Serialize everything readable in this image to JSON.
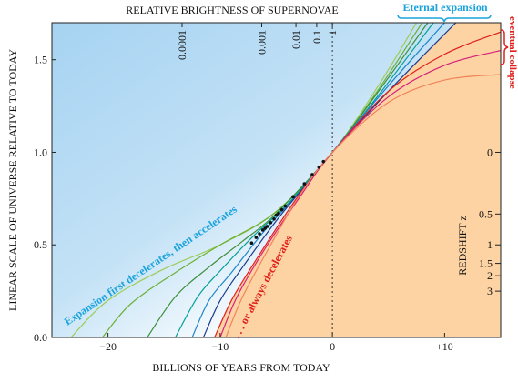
{
  "chart_data": {
    "type": "line",
    "x2label": "RELATIVE BRIGHTNESS OF SUPERNOVAE",
    "xlabel": "BILLIONS OF YEARS FROM TODAY",
    "ylabel": "LINEAR SCALE OF UNIVERSE RELATIVE TO TODAY",
    "y2label": "REDSHIFT z",
    "xlim": [
      -25,
      15
    ],
    "ylim": [
      0,
      1.7
    ],
    "xticks": [
      {
        "value": -20,
        "label": "−20"
      },
      {
        "value": -10,
        "label": "−10"
      },
      0,
      {
        "value": 10,
        "label": "+10"
      }
    ],
    "yticks": [
      {
        "value": 0,
        "label": "0.0"
      },
      0.5,
      {
        "value": 1,
        "label": "1.0"
      },
      1.5
    ],
    "x2ticks": [
      {
        "value": 0.0001,
        "x": -13.4
      },
      {
        "value": 0.001,
        "x": -6.3
      },
      {
        "value": 0.01,
        "x": -3.25
      },
      {
        "value": 0.1,
        "x": -1.4
      },
      {
        "value": 1,
        "x": 0
      }
    ],
    "y2ticks": [
      0,
      0.5,
      1,
      1.5,
      2,
      3
    ],
    "grid": false,
    "series": [
      {
        "color": "#9ccc55",
        "x": [
          -23.3,
          -20,
          -15,
          -10,
          -5,
          0,
          4,
          7.5
        ],
        "values": [
          0,
          0.2,
          0.37,
          0.5,
          0.68,
          1,
          1.35,
          1.7
        ]
      },
      {
        "color": "#6cb033",
        "x": [
          -20.5,
          -18,
          -14,
          -10,
          -5,
          0,
          4,
          8
        ],
        "values": [
          0,
          0.18,
          0.35,
          0.5,
          0.68,
          1,
          1.33,
          1.7
        ]
      },
      {
        "color": "#3a8f3a",
        "x": [
          -16.5,
          -14,
          -11,
          -8,
          -5,
          0,
          4,
          8.5
        ],
        "values": [
          0,
          0.22,
          0.38,
          0.52,
          0.67,
          1,
          1.32,
          1.7
        ]
      },
      {
        "color": "#00a09a",
        "x": [
          -14,
          -12,
          -10,
          -7,
          -4,
          0,
          4,
          9
        ],
        "values": [
          0,
          0.22,
          0.36,
          0.55,
          0.72,
          1,
          1.3,
          1.7
        ]
      },
      {
        "color": "#1f86c8",
        "x": [
          -12.5,
          -11,
          -9,
          -6,
          -3,
          0,
          5,
          10
        ],
        "values": [
          0,
          0.2,
          0.35,
          0.58,
          0.78,
          1,
          1.36,
          1.7
        ]
      },
      {
        "color": "#1b3a8a",
        "x": [
          -11.5,
          -10,
          -8,
          -5,
          -2,
          0,
          5,
          11
        ],
        "values": [
          0,
          0.2,
          0.38,
          0.63,
          0.85,
          1,
          1.33,
          1.7
        ]
      },
      {
        "color": "#e0201b",
        "x": [
          -10.5,
          -9,
          -7,
          -4,
          -2,
          0,
          5,
          10,
          15
        ],
        "values": [
          0,
          0.2,
          0.4,
          0.68,
          0.85,
          1,
          1.33,
          1.53,
          1.65
        ]
      },
      {
        "color": "#d8207a",
        "x": [
          -10,
          -8.5,
          -6,
          -3,
          0,
          5,
          10,
          15
        ],
        "values": [
          0,
          0.22,
          0.48,
          0.75,
          1,
          1.3,
          1.47,
          1.55
        ]
      },
      {
        "color": "#f0845a",
        "x": [
          -9.5,
          -8,
          -5.5,
          -3,
          0,
          5,
          10,
          15
        ],
        "values": [
          0,
          0.22,
          0.5,
          0.76,
          1,
          1.27,
          1.39,
          1.42
        ]
      }
    ],
    "points": {
      "x": [
        -7.2,
        -6.8,
        -6.5,
        -6.2,
        -6,
        -5.8,
        -5.5,
        -5.2,
        -5,
        -4.8,
        -4.5,
        -4.2,
        -3.5,
        -2.5,
        -1.8,
        -1.2,
        -0.8
      ],
      "values": [
        0.51,
        0.54,
        0.56,
        0.58,
        0.59,
        0.6,
        0.62,
        0.64,
        0.66,
        0.67,
        0.69,
        0.71,
        0.76,
        0.83,
        0.88,
        0.92,
        0.95
      ]
    },
    "annotations": [
      "Eternal expansion",
      "eventual collapse",
      "Expansion first decelerates, then accelerates",
      ". . . or always decelerates"
    ]
  }
}
